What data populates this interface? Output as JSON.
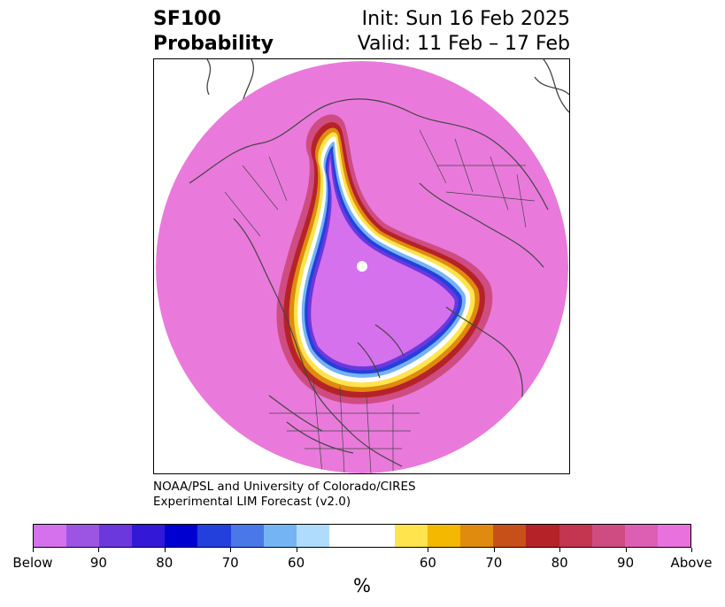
{
  "title": {
    "variable": "SF100",
    "subtitle": "Probability",
    "init": "Init: Sun 16 Feb 2025",
    "valid": "Valid: 11 Feb – 17 Feb"
  },
  "credit": {
    "line1": "NOAA/PSL and University of Colorado/CIRES",
    "line2": "Experimental LIM Forecast (v2.0)"
  },
  "colorbar": {
    "units": "%",
    "colors": [
      "#d571ec",
      "#9b55e2",
      "#6a38dd",
      "#3418d8",
      "#0000d0",
      "#2340dc",
      "#4a78e8",
      "#74b4f4",
      "#afdcfc",
      "#ffffff",
      "#ffe44d",
      "#f5b800",
      "#e08a0e",
      "#c75018",
      "#b52228",
      "#c43550",
      "#cf4c82",
      "#dc5fb4",
      "#e871de"
    ],
    "labels": [
      "Below",
      "90",
      "80",
      "70",
      "60",
      "60",
      "70",
      "80",
      "90",
      "Above"
    ]
  },
  "map": {
    "projection": "north-polar-stereographic",
    "background_color": "#e97adb",
    "below_color": "#d571ec"
  }
}
